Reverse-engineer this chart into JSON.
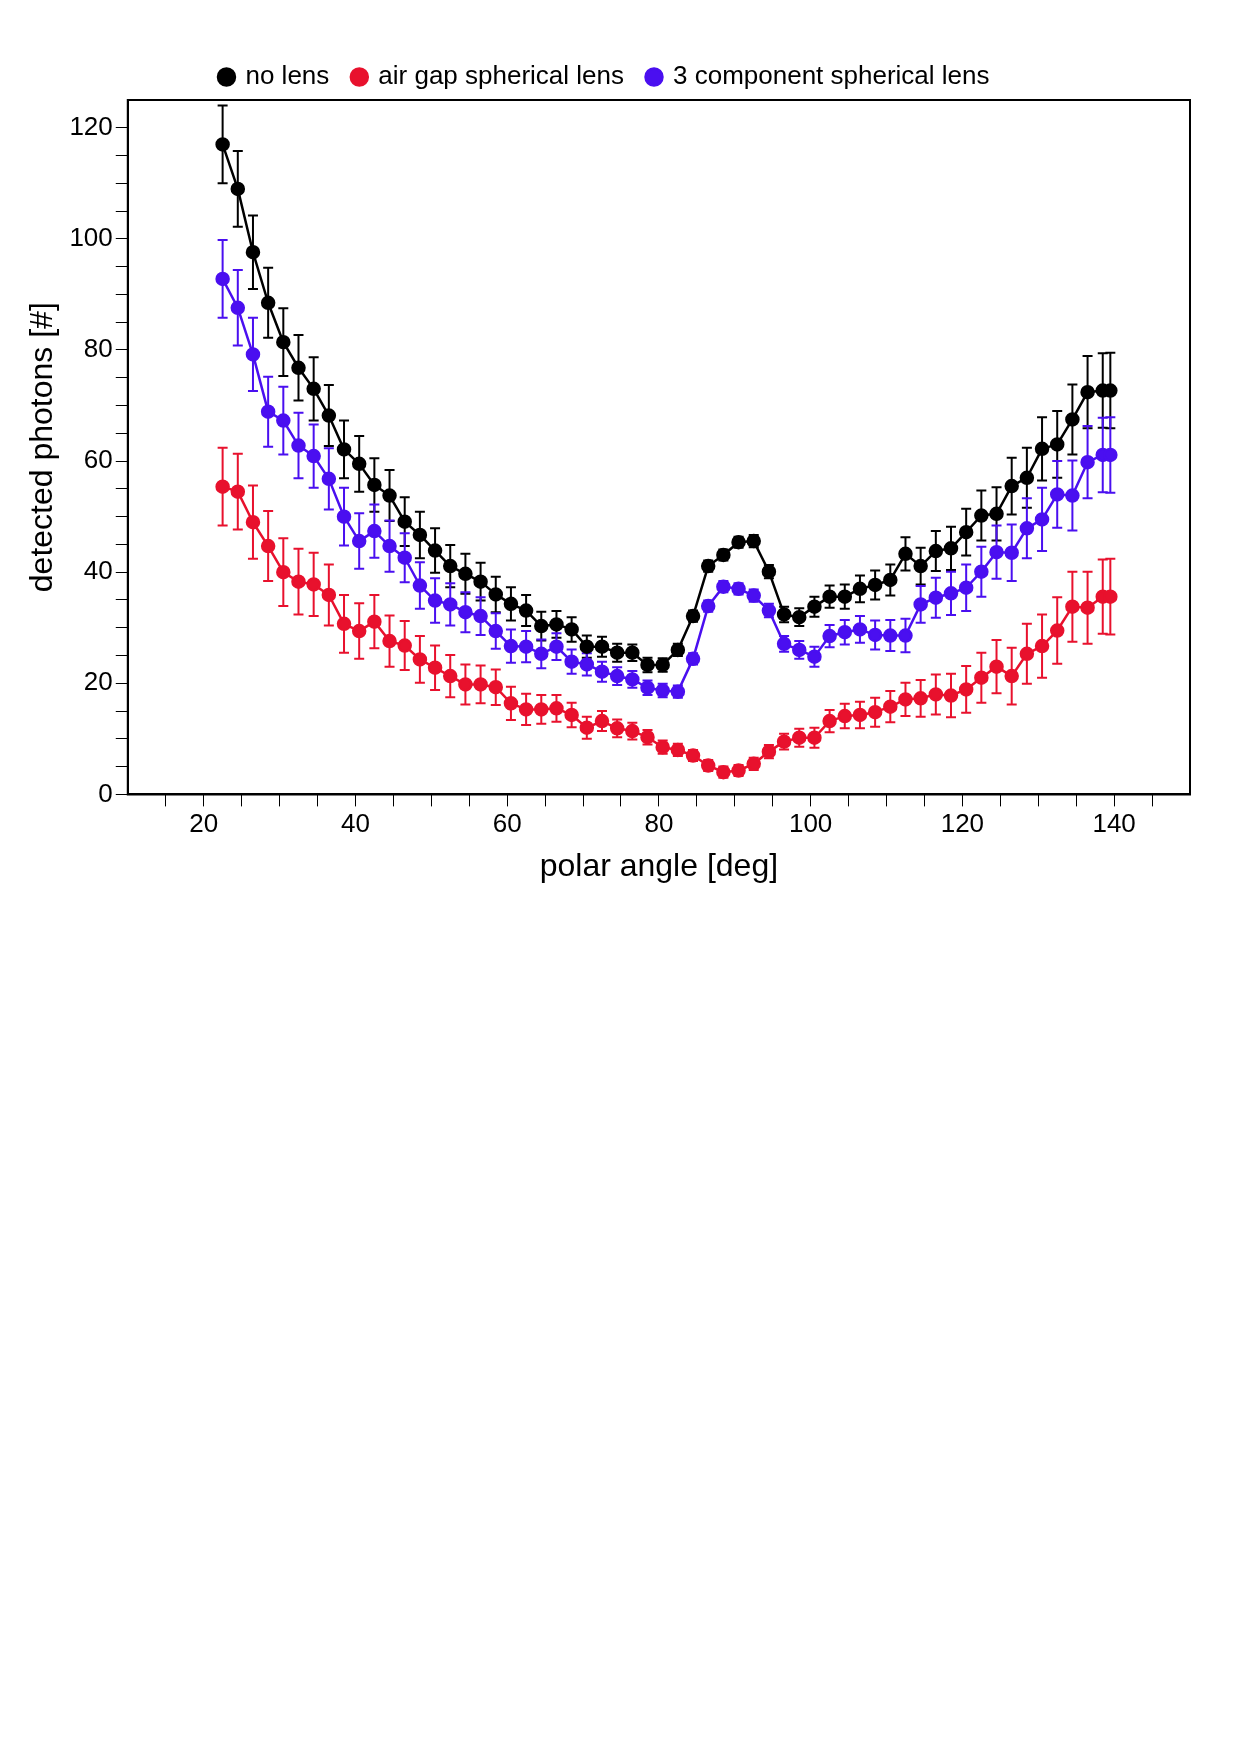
{
  "chart_data": {
    "type": "line",
    "xlabel": "polar angle [deg]",
    "ylabel": "detected photons [#]",
    "marker": "circle",
    "line_style": "solid",
    "grid": false,
    "legend": "top",
    "x": [
      22.5,
      24.5,
      26.5,
      28.5,
      30.5,
      32.5,
      34.5,
      36.5,
      38.5,
      40.5,
      42.5,
      44.5,
      46.5,
      48.5,
      50.5,
      52.5,
      54.5,
      56.5,
      58.5,
      60.5,
      62.5,
      64.5,
      66.5,
      68.5,
      70.5,
      72.5,
      74.5,
      76.5,
      78.5,
      80.5,
      82.5,
      84.5,
      86.5,
      88.5,
      90.5,
      92.5,
      94.5,
      96.5,
      98.5,
      100.5,
      102.5,
      104.5,
      106.5,
      108.5,
      110.5,
      112.5,
      114.5,
      116.5,
      118.5,
      120.5,
      122.5,
      124.5,
      126.5,
      128.5,
      130.5,
      132.5,
      134.5,
      136.5,
      138.5,
      139.5
    ],
    "xlim": [
      10,
      150
    ],
    "xticks": [
      {
        "value": 15,
        "label": null
      },
      20,
      {
        "value": 25,
        "label": null
      },
      {
        "value": 30,
        "label": null
      },
      {
        "value": 35,
        "label": null
      },
      40,
      {
        "value": 45,
        "label": null
      },
      {
        "value": 50,
        "label": null
      },
      {
        "value": 55,
        "label": null
      },
      60,
      {
        "value": 65,
        "label": null
      },
      {
        "value": 70,
        "label": null
      },
      {
        "value": 75,
        "label": null
      },
      80,
      {
        "value": 85,
        "label": null
      },
      {
        "value": 90,
        "label": null
      },
      {
        "value": 95,
        "label": null
      },
      100,
      {
        "value": 105,
        "label": null
      },
      {
        "value": 110,
        "label": null
      },
      {
        "value": 115,
        "label": null
      },
      120,
      {
        "value": 125,
        "label": null
      },
      {
        "value": 130,
        "label": null
      },
      {
        "value": 135,
        "label": null
      },
      140,
      {
        "value": 145,
        "label": null
      }
    ],
    "ylim": [
      0,
      125
    ],
    "yticks": [
      0,
      {
        "value": 5,
        "label": null
      },
      {
        "value": 10,
        "label": null
      },
      {
        "value": 15,
        "label": null
      },
      20,
      {
        "value": 25,
        "label": null
      },
      {
        "value": 30,
        "label": null
      },
      {
        "value": 35,
        "label": null
      },
      40,
      {
        "value": 45,
        "label": null
      },
      {
        "value": 50,
        "label": null
      },
      {
        "value": 55,
        "label": null
      },
      60,
      {
        "value": 65,
        "label": null
      },
      {
        "value": 70,
        "label": null
      },
      {
        "value": 75,
        "label": null
      },
      80,
      {
        "value": 85,
        "label": null
      },
      {
        "value": 90,
        "label": null
      },
      {
        "value": 95,
        "label": null
      },
      100,
      {
        "value": 105,
        "label": null
      },
      {
        "value": 110,
        "label": null
      },
      {
        "value": 115,
        "label": null
      },
      120
    ],
    "series": [
      {
        "name": "no lens",
        "color": "#000000",
        "values": [
          117.0,
          109.0,
          97.6,
          88.5,
          81.4,
          76.8,
          73.0,
          68.2,
          62.1,
          59.5,
          55.7,
          53.8,
          49.1,
          46.7,
          43.9,
          41.1,
          39.7,
          38.3,
          36.0,
          34.3,
          33.1,
          30.3,
          30.6,
          29.7,
          26.6,
          26.6,
          25.5,
          25.5,
          23.3,
          23.3,
          26.0,
          32.1,
          41.1,
          43.1,
          45.4,
          45.6,
          40.1,
          32.4,
          31.9,
          33.8,
          35.6,
          35.6,
          37.0,
          37.7,
          38.6,
          43.3,
          41.1,
          43.8,
          44.3,
          47.2,
          50.2,
          50.5,
          55.5,
          57.0,
          62.2,
          63.0,
          67.5,
          72.4,
          72.7,
          72.7
        ],
        "errors": [
          7,
          6.8,
          6.6,
          6.3,
          6.1,
          5.9,
          5.7,
          5.5,
          5.2,
          5,
          4.8,
          4.6,
          4.4,
          4.2,
          4,
          3.8,
          3.6,
          3.4,
          3.2,
          3,
          2.8,
          2.6,
          2.4,
          2.2,
          2,
          1.8,
          1.6,
          1.5,
          1.3,
          1.2,
          1.1,
          1,
          1,
          1,
          1,
          1.1,
          1.2,
          1.4,
          1.6,
          1.8,
          2,
          2.2,
          2.4,
          2.6,
          2.8,
          3,
          3.3,
          3.6,
          3.9,
          4.2,
          4.5,
          4.8,
          5.1,
          5.4,
          5.7,
          6,
          6.3,
          6.5,
          6.7,
          6.8
        ]
      },
      {
        "name": "air gap spherical lens",
        "color": "#e8112d",
        "values": [
          55.4,
          54.5,
          49.0,
          44.7,
          40.0,
          38.3,
          37.8,
          35.9,
          30.7,
          29.4,
          31.1,
          27.6,
          26.8,
          24.3,
          22.8,
          21.3,
          19.8,
          19.8,
          19.3,
          16.4,
          15.3,
          15.3,
          15.5,
          14.3,
          12.0,
          13.2,
          11.9,
          11.4,
          10.3,
          8.5,
          8.0,
          7.0,
          5.2,
          4.0,
          4.3,
          5.5,
          7.7,
          9.5,
          10.2,
          10.2,
          13.2,
          14.1,
          14.3,
          14.8,
          15.8,
          17.1,
          17.3,
          18.0,
          17.8,
          18.9,
          21.0,
          23.0,
          21.3,
          25.3,
          26.7,
          29.5,
          33.8,
          33.6,
          35.6,
          35.6
        ],
        "errors": [
          7,
          6.8,
          6.6,
          6.3,
          6.1,
          5.9,
          5.7,
          5.5,
          5.2,
          5,
          4.8,
          4.6,
          4.4,
          4.2,
          4,
          3.8,
          3.6,
          3.4,
          3.2,
          3,
          2.8,
          2.6,
          2.4,
          2.2,
          2,
          1.8,
          1.6,
          1.5,
          1.3,
          1.2,
          1.1,
          1,
          1,
          1,
          1,
          1.1,
          1.2,
          1.4,
          1.6,
          1.8,
          2,
          2.2,
          2.4,
          2.6,
          2.8,
          3,
          3.3,
          3.6,
          3.9,
          4.2,
          4.5,
          4.8,
          5.1,
          5.4,
          5.7,
          6,
          6.3,
          6.5,
          6.7,
          6.8
        ]
      },
      {
        "name": "3 component spherical lens",
        "color": "#4a0ff0",
        "values": [
          92.8,
          87.6,
          79.2,
          68.9,
          67.3,
          62.8,
          60.9,
          56.8,
          50.0,
          45.6,
          47.4,
          44.7,
          42.6,
          37.6,
          34.9,
          34.2,
          32.8,
          32.1,
          29.4,
          26.7,
          26.6,
          25.3,
          26.6,
          23.9,
          23.4,
          22.1,
          21.3,
          20.7,
          19.2,
          18.7,
          18.5,
          24.4,
          33.9,
          37.4,
          37.0,
          35.8,
          33.1,
          27.1,
          26.0,
          24.8,
          28.5,
          29.2,
          29.7,
          28.7,
          28.6,
          28.6,
          34.2,
          35.4,
          36.2,
          37.2,
          40.1,
          43.6,
          43.5,
          47.9,
          49.5,
          54.0,
          53.8,
          59.8,
          61.1,
          61.1
        ],
        "errors": [
          7,
          6.8,
          6.6,
          6.3,
          6.1,
          5.9,
          5.7,
          5.5,
          5.2,
          5,
          4.8,
          4.6,
          4.4,
          4.2,
          4,
          3.8,
          3.6,
          3.4,
          3.2,
          3,
          2.8,
          2.6,
          2.4,
          2.2,
          2,
          1.8,
          1.6,
          1.5,
          1.3,
          1.2,
          1.1,
          1,
          1,
          1,
          1,
          1.1,
          1.2,
          1.4,
          1.6,
          1.8,
          2,
          2.2,
          2.4,
          2.6,
          2.8,
          3,
          3.3,
          3.6,
          3.9,
          4.2,
          4.5,
          4.8,
          5.1,
          5.4,
          5.7,
          6,
          6.3,
          6.5,
          6.7,
          6.8
        ]
      }
    ]
  }
}
